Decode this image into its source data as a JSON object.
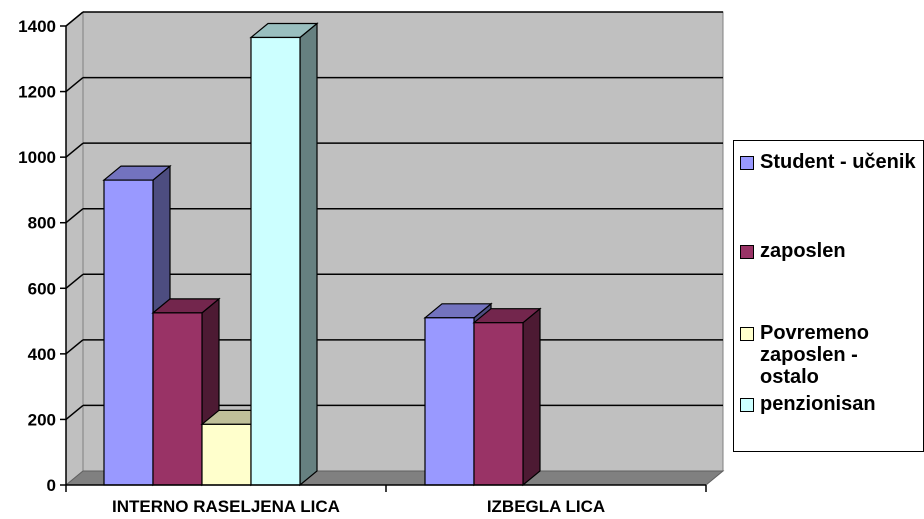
{
  "chart_data": {
    "type": "bar",
    "categories": [
      "INTERNO RASELJENA LICA",
      "IZBEGLA LICA"
    ],
    "series": [
      {
        "name": "Student - učenik",
        "values": [
          930,
          510
        ],
        "color": "#9999FF"
      },
      {
        "name": "zaposlen",
        "values": [
          525,
          495
        ],
        "color": "#993366"
      },
      {
        "name": "Povremeno zaposlen - ostalo",
        "values": [
          185,
          null
        ],
        "color": "#FFFFCC"
      },
      {
        "name": "penzionisan",
        "values": [
          1365,
          null
        ],
        "color": "#CCFFFF"
      }
    ],
    "ylim": [
      0,
      1400
    ],
    "yticks": [
      0,
      200,
      400,
      600,
      800,
      1000,
      1200,
      1400
    ],
    "grid": true,
    "legend_position": "right",
    "wall_color": "#C0C0C0",
    "title": "",
    "xlabel": "",
    "ylabel": ""
  }
}
